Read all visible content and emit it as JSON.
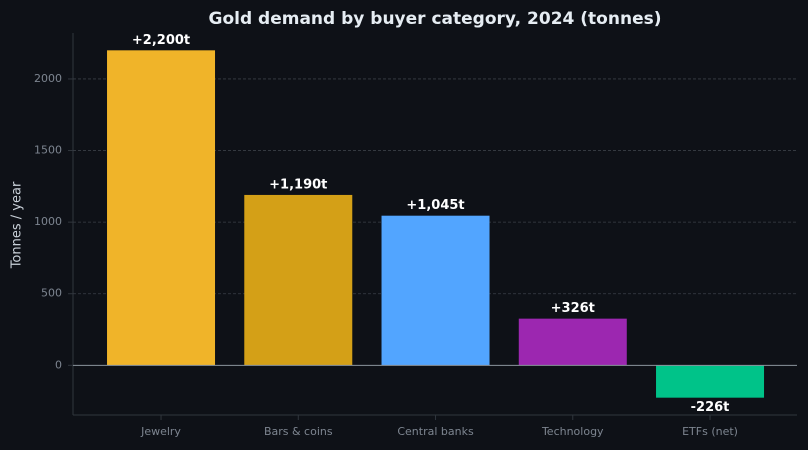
{
  "chart_data": {
    "type": "bar",
    "title": "Gold demand by buyer category, 2024 (tonnes)",
    "y_label": "Tonnes / year",
    "categories": [
      "Jewelry",
      "Bars & coins",
      "Central banks",
      "Technology",
      "ETFs (net)"
    ],
    "values": [
      2200,
      1190,
      1045,
      326,
      -226
    ],
    "value_labels": [
      "+2,200t",
      "+1,190t",
      "+1,045t",
      "+326t",
      "-226t"
    ],
    "colors": [
      "#f0b429",
      "#d4a017",
      "#52a5ff",
      "#9c27b0",
      "#00c389"
    ],
    "ylim": [
      -347,
      2321
    ],
    "yticks": [
      0,
      500,
      1000,
      1500,
      2000
    ],
    "grid": true
  }
}
